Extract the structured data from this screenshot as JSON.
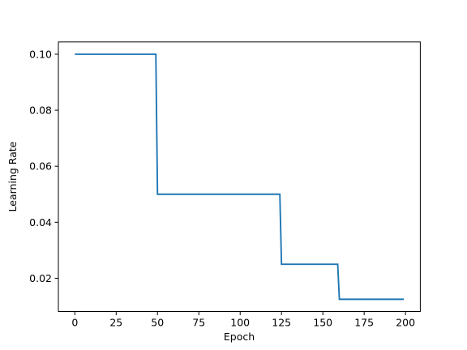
{
  "chart_data": {
    "type": "line",
    "x_label": "Epoch",
    "y_label": "Learning Rate",
    "x": [
      0,
      49,
      50,
      124,
      125,
      159,
      160,
      199
    ],
    "series": [
      {
        "color": "#1f77b4",
        "values": [
          0.1,
          0.1,
          0.05,
          0.05,
          0.025,
          0.025,
          0.0125,
          0.0125
        ]
      }
    ],
    "xlim": [
      -9.95,
      208.95
    ],
    "xticks": [
      0,
      25,
      50,
      75,
      100,
      125,
      150,
      175,
      200
    ],
    "ylim": [
      0.008125,
      0.104375
    ],
    "yticks": [
      {
        "value": 0.02,
        "label": "0.02"
      },
      {
        "value": 0.04,
        "label": "0.04"
      },
      {
        "value": 0.06,
        "label": "0.06"
      },
      {
        "value": 0.08,
        "label": "0.08"
      },
      {
        "value": 0.1,
        "label": "0.10"
      }
    ],
    "grid": false
  }
}
